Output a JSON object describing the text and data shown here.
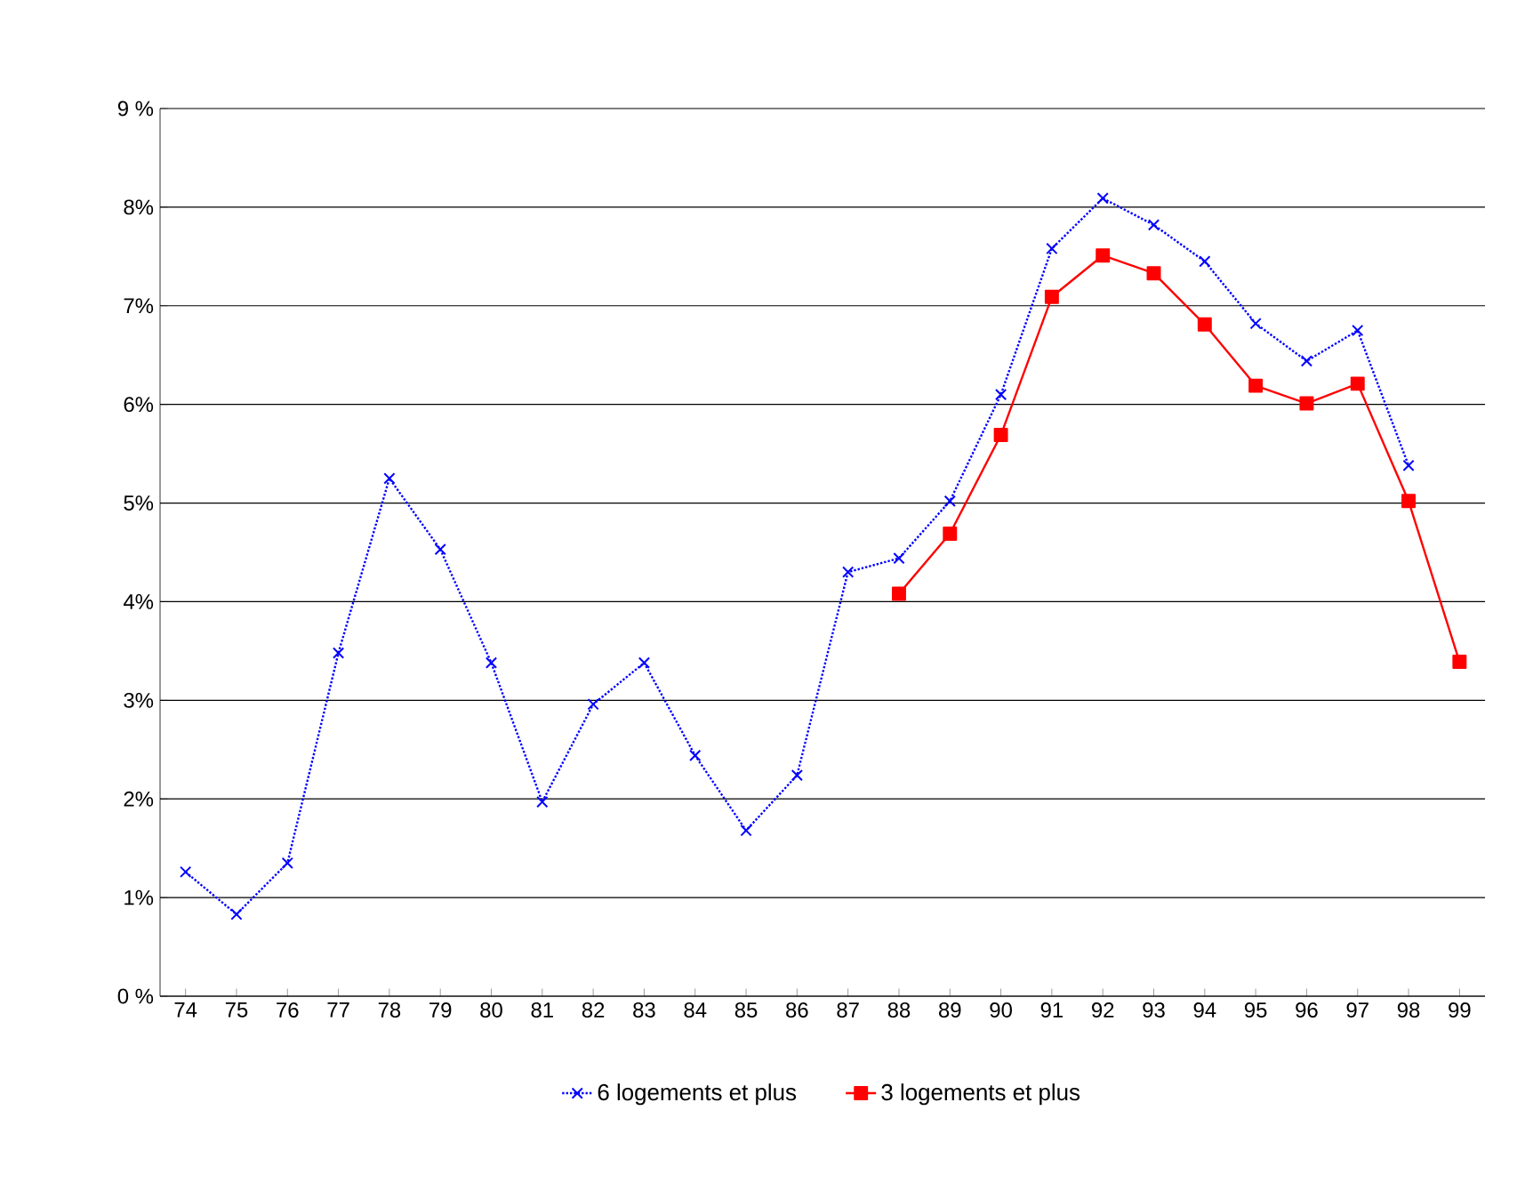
{
  "chart_data": {
    "type": "line",
    "categories": [
      "74",
      "75",
      "76",
      "77",
      "78",
      "79",
      "80",
      "81",
      "82",
      "83",
      "84",
      "85",
      "86",
      "87",
      "88",
      "89",
      "90",
      "91",
      "92",
      "93",
      "94",
      "95",
      "96",
      "97",
      "98",
      "99"
    ],
    "series": [
      {
        "name": "6 logements et plus",
        "color": "#0000ff",
        "marker": "cross",
        "line_style": "dotted",
        "values": [
          1.26,
          0.83,
          1.35,
          3.48,
          5.25,
          4.53,
          3.38,
          1.97,
          2.96,
          3.38,
          2.44,
          1.68,
          2.24,
          4.3,
          4.44,
          5.02,
          6.1,
          7.58,
          8.09,
          7.82,
          7.45,
          6.82,
          6.44,
          6.75,
          5.38,
          null
        ]
      },
      {
        "name": "3 logements et plus",
        "color": "#ff0000",
        "marker": "square",
        "line_style": "solid",
        "values": [
          null,
          null,
          null,
          null,
          null,
          null,
          null,
          null,
          null,
          null,
          null,
          null,
          null,
          null,
          4.08,
          4.69,
          5.69,
          7.09,
          7.51,
          7.33,
          6.81,
          6.19,
          6.01,
          6.21,
          5.02,
          3.39
        ]
      }
    ],
    "ylim": [
      0,
      9
    ],
    "yticks": [
      {
        "value": 0,
        "label": "0 %"
      },
      {
        "value": 1,
        "label": "1%"
      },
      {
        "value": 2,
        "label": "2%"
      },
      {
        "value": 3,
        "label": "3%"
      },
      {
        "value": 4,
        "label": "4%"
      },
      {
        "value": 5,
        "label": "5%"
      },
      {
        "value": 6,
        "label": "6%"
      },
      {
        "value": 7,
        "label": "7%"
      },
      {
        "value": 8,
        "label": "8%"
      },
      {
        "value": 9,
        "label": "9 %"
      }
    ],
    "grid": "y",
    "legend": "bottom"
  }
}
